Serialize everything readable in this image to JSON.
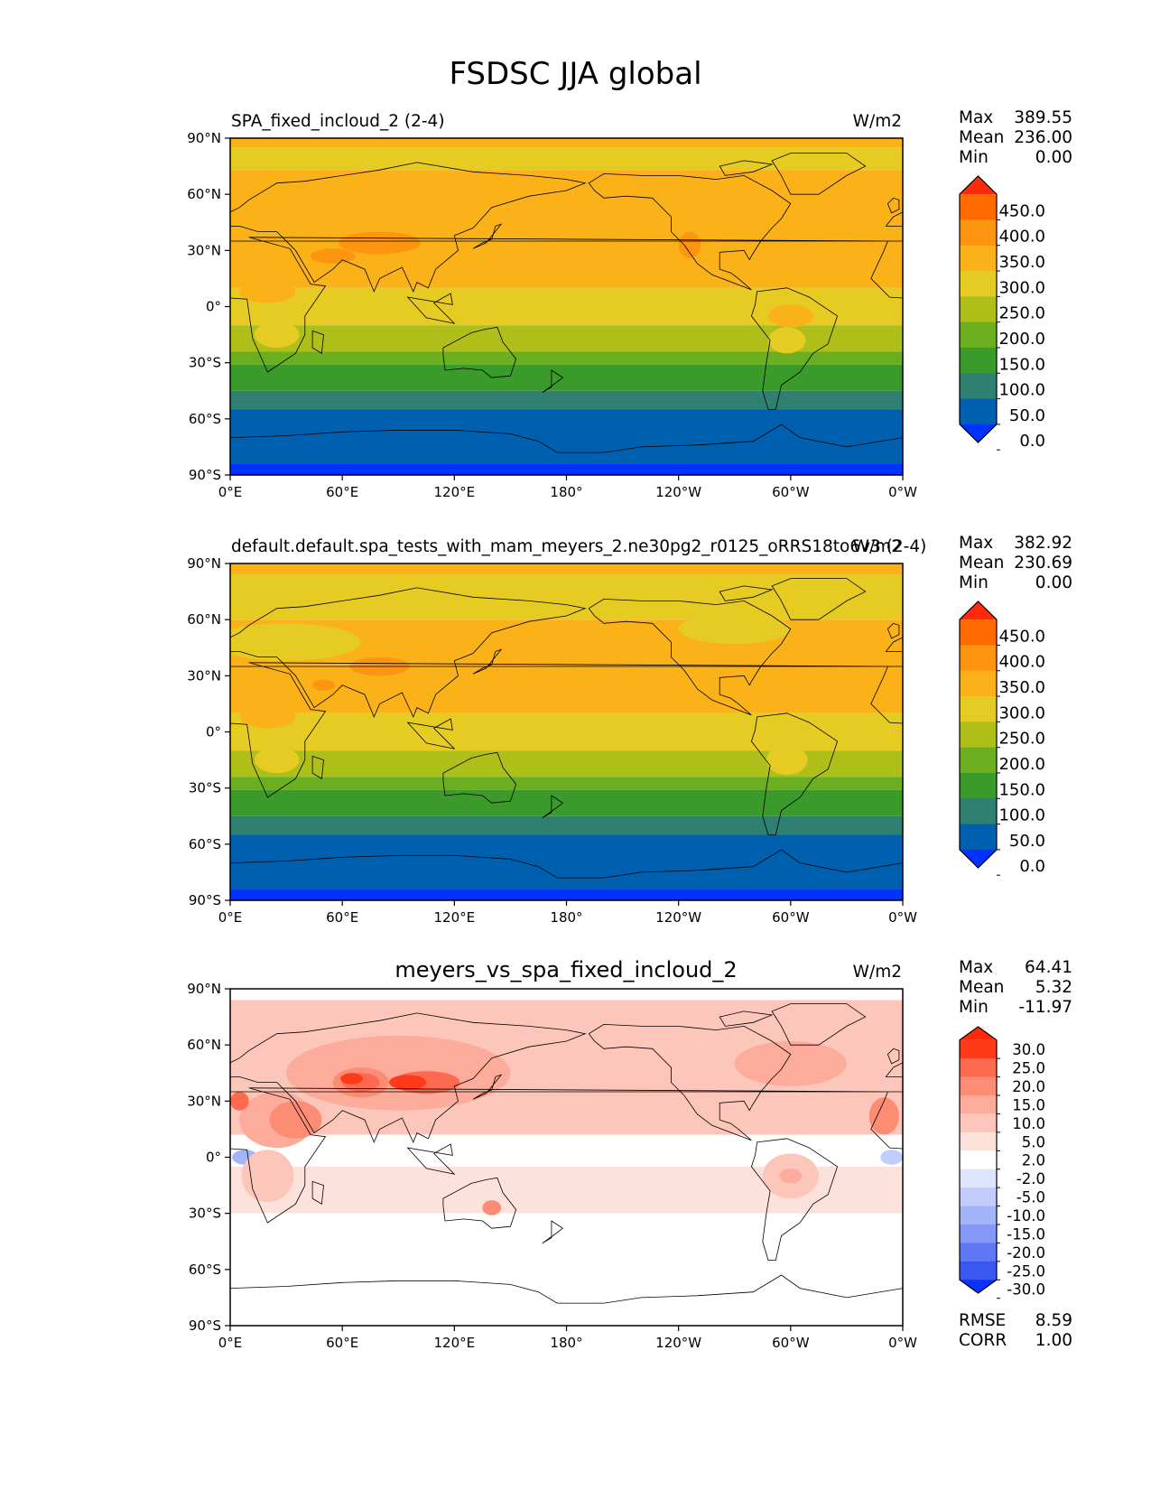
{
  "title": "FSDSC JJA global",
  "chart_data": [
    {
      "type": "heatmap",
      "title": "SPA_fixed_incloud_2 (2-4)",
      "units": "W/m2",
      "stats": [
        {
          "label": "Max",
          "value": "389.55"
        },
        {
          "label": "Mean",
          "value": "236.00"
        },
        {
          "label": "Min",
          "value": "0.00"
        }
      ],
      "xticks": [
        "0°E",
        "60°E",
        "120°E",
        "180°",
        "120°W",
        "60°W",
        "0°W"
      ],
      "yticks": [
        "90°N",
        "60°N",
        "30°N",
        "0°",
        "30°S",
        "60°S",
        "90°S"
      ],
      "xlim": [
        0,
        360
      ],
      "ylim": [
        -90,
        90
      ],
      "colorbar": {
        "labels": [
          "450.0",
          "400.0",
          "350.0",
          "300.0",
          "250.0",
          "200.0",
          "150.0",
          "100.0",
          "50.0",
          "0.0"
        ],
        "colors": [
          "#ff2a0a",
          "#ff6a00",
          "#fd9510",
          "#fbb219",
          "#e5cb22",
          "#afbf1a",
          "#6bae1f",
          "#3a9a2a",
          "#2f8070",
          "#0060b0",
          "#0032ff"
        ]
      },
      "bands": [
        {
          "from": 90,
          "to": 85,
          "color": "#fbb219"
        },
        {
          "from": 85,
          "to": 73,
          "color": "#e5cb22"
        },
        {
          "from": 73,
          "to": 10,
          "color": "#fbb219"
        },
        {
          "from": 10,
          "to": -10,
          "color": "#e5cb22"
        },
        {
          "from": -10,
          "to": -24,
          "color": "#afbf1a"
        },
        {
          "from": -24,
          "to": -31,
          "color": "#6bae1f"
        },
        {
          "from": -31,
          "to": -45,
          "color": "#3a9a2a"
        },
        {
          "from": -45,
          "to": -55,
          "color": "#2f8070"
        },
        {
          "from": -55,
          "to": -84,
          "color": "#0060b0"
        },
        {
          "from": -84,
          "to": -90,
          "color": "#0032ff"
        }
      ],
      "patches": [
        {
          "lon": 55,
          "lat": 27,
          "rlon": 12,
          "rlat": 4,
          "color": "#fd9510"
        },
        {
          "lon": 80,
          "lat": 34,
          "rlon": 22,
          "rlat": 6,
          "color": "#fd9510"
        },
        {
          "lon": 246,
          "lat": 33,
          "rlon": 6,
          "rlat": 7,
          "color": "#fd9510"
        },
        {
          "lon": 20,
          "lat": 8,
          "rlon": 15,
          "rlat": 6,
          "color": "#fbb219"
        },
        {
          "lon": 300,
          "lat": -5,
          "rlon": 12,
          "rlat": 6,
          "color": "#fbb219"
        },
        {
          "lon": 298,
          "lat": -18,
          "rlon": 10,
          "rlat": 7,
          "color": "#e5cb22"
        },
        {
          "lon": 25,
          "lat": -15,
          "rlon": 12,
          "rlat": 7,
          "color": "#e5cb22"
        }
      ]
    },
    {
      "type": "heatmap",
      "title": "default.default.spa_tests_with_mam_meyers_2.ne30pg2_r0125_oRRS18to6v3 (2-4)",
      "units": "W/m2",
      "stats": [
        {
          "label": "Max",
          "value": "382.92"
        },
        {
          "label": "Mean",
          "value": "230.69"
        },
        {
          "label": "Min",
          "value": "0.00"
        }
      ],
      "xticks": [
        "0°E",
        "60°E",
        "120°E",
        "180°",
        "120°W",
        "60°W",
        "0°W"
      ],
      "yticks": [
        "90°N",
        "60°N",
        "30°N",
        "0°",
        "30°S",
        "60°S",
        "90°S"
      ],
      "xlim": [
        0,
        360
      ],
      "ylim": [
        -90,
        90
      ],
      "colorbar": {
        "labels": [
          "450.0",
          "400.0",
          "350.0",
          "300.0",
          "250.0",
          "200.0",
          "150.0",
          "100.0",
          "50.0",
          "0.0"
        ],
        "colors": [
          "#ff2a0a",
          "#ff6a00",
          "#fd9510",
          "#fbb219",
          "#e5cb22",
          "#afbf1a",
          "#6bae1f",
          "#3a9a2a",
          "#2f8070",
          "#0060b0",
          "#0032ff"
        ]
      },
      "bands": [
        {
          "from": 90,
          "to": 84,
          "color": "#fbb219"
        },
        {
          "from": 84,
          "to": 60,
          "color": "#e5cb22"
        },
        {
          "from": 60,
          "to": 10,
          "color": "#fbb219"
        },
        {
          "from": 10,
          "to": -10,
          "color": "#e5cb22"
        },
        {
          "from": -10,
          "to": -24,
          "color": "#afbf1a"
        },
        {
          "from": -24,
          "to": -31,
          "color": "#6bae1f"
        },
        {
          "from": -31,
          "to": -45,
          "color": "#3a9a2a"
        },
        {
          "from": -45,
          "to": -55,
          "color": "#2f8070"
        },
        {
          "from": -55,
          "to": -84,
          "color": "#0060b0"
        },
        {
          "from": -84,
          "to": -90,
          "color": "#0032ff"
        }
      ],
      "patches": [
        {
          "lon": 30,
          "lat": 48,
          "rlon": 40,
          "rlat": 10,
          "color": "#e5cb22"
        },
        {
          "lon": 270,
          "lat": 55,
          "rlon": 30,
          "rlat": 8,
          "color": "#e5cb22"
        },
        {
          "lon": 80,
          "lat": 35,
          "rlon": 16,
          "rlat": 5,
          "color": "#fd9510"
        },
        {
          "lon": 50,
          "lat": 25,
          "rlon": 6,
          "rlat": 3,
          "color": "#fd9510"
        },
        {
          "lon": 20,
          "lat": 8,
          "rlon": 15,
          "rlat": 6,
          "color": "#fbb219"
        },
        {
          "lon": 298,
          "lat": -15,
          "rlon": 11,
          "rlat": 8,
          "color": "#e5cb22"
        },
        {
          "lon": 25,
          "lat": -15,
          "rlon": 12,
          "rlat": 7,
          "color": "#e5cb22"
        }
      ]
    },
    {
      "type": "heatmap",
      "title": "meyers_vs_spa_fixed_incloud_2",
      "units": "W/m2",
      "stats": [
        {
          "label": "Max",
          "value": "64.41"
        },
        {
          "label": "Mean",
          "value": "5.32"
        },
        {
          "label": "Min",
          "value": "-11.97"
        }
      ],
      "extra_stats": [
        {
          "label": "RMSE",
          "value": "8.59"
        },
        {
          "label": "CORR",
          "value": "1.00"
        }
      ],
      "xticks": [
        "0°E",
        "60°E",
        "120°E",
        "180°",
        "120°W",
        "60°W",
        "0°W"
      ],
      "yticks": [
        "90°N",
        "60°N",
        "30°N",
        "0°",
        "30°S",
        "60°S",
        "90°S"
      ],
      "xlim": [
        0,
        360
      ],
      "ylim": [
        -90,
        90
      ],
      "colorbar": {
        "labels": [
          "30.0",
          "25.0",
          "20.0",
          "15.0",
          "10.0",
          "5.0",
          "2.0",
          "-2.0",
          "-5.0",
          "-10.0",
          "-15.0",
          "-20.0",
          "-25.0",
          "-30.0"
        ],
        "colors": [
          "#ff2a0a",
          "#fe3a18",
          "#fd6a50",
          "#fd8c75",
          "#fdab9a",
          "#fdc6bb",
          "#fde2dc",
          "#ffffff",
          "#dfe4fd",
          "#c2cdfb",
          "#a4b4f9",
          "#8598f6",
          "#5f78f3",
          "#3a58f1",
          "#0a32ff"
        ]
      },
      "bands": [
        {
          "from": 90,
          "to": 84,
          "color": "#ffffff"
        },
        {
          "from": 84,
          "to": 12,
          "color": "#fdc6bb"
        },
        {
          "from": 12,
          "to": -5,
          "color": "#ffffff"
        },
        {
          "from": -5,
          "to": -30,
          "color": "#fde2dc"
        },
        {
          "from": -30,
          "to": -90,
          "color": "#ffffff"
        }
      ],
      "patches": [
        {
          "lon": 90,
          "lat": 45,
          "rlon": 60,
          "rlat": 20,
          "color": "#fdab9a"
        },
        {
          "lon": 300,
          "lat": 50,
          "rlon": 30,
          "rlat": 12,
          "color": "#fdab9a"
        },
        {
          "lon": 25,
          "lat": 20,
          "rlon": 20,
          "rlat": 15,
          "color": "#fdab9a"
        },
        {
          "lon": 35,
          "lat": 20,
          "rlon": 14,
          "rlat": 10,
          "color": "#fd8c75"
        },
        {
          "lon": 70,
          "lat": 40,
          "rlon": 15,
          "rlat": 8,
          "color": "#fd8c75"
        },
        {
          "lon": 105,
          "lat": 40,
          "rlon": 18,
          "rlat": 6,
          "color": "#fd6a50"
        },
        {
          "lon": 70,
          "lat": 40,
          "rlon": 10,
          "rlat": 5,
          "color": "#fd6a50"
        },
        {
          "lon": 95,
          "lat": 40,
          "rlon": 10,
          "rlat": 4,
          "color": "#fe3a18"
        },
        {
          "lon": 65,
          "lat": 42,
          "rlon": 6,
          "rlat": 3,
          "color": "#fe3a18"
        },
        {
          "lon": 350,
          "lat": 22,
          "rlon": 8,
          "rlat": 10,
          "color": "#fd8c75"
        },
        {
          "lon": 5,
          "lat": 30,
          "rlon": 5,
          "rlat": 5,
          "color": "#fd6a50"
        },
        {
          "lon": 8,
          "lat": 0,
          "rlon": 7,
          "rlat": 4,
          "color": "#a4b4f9"
        },
        {
          "lon": 354,
          "lat": 0,
          "rlon": 6,
          "rlat": 4,
          "color": "#c2cdfb"
        },
        {
          "lon": 300,
          "lat": -10,
          "rlon": 15,
          "rlat": 12,
          "color": "#fdc6bb"
        },
        {
          "lon": 300,
          "lat": -10,
          "rlon": 6,
          "rlat": 4,
          "color": "#fdab9a"
        },
        {
          "lon": 140,
          "lat": -27,
          "rlon": 5,
          "rlat": 4,
          "color": "#fd8c75"
        },
        {
          "lon": 20,
          "lat": -10,
          "rlon": 14,
          "rlat": 14,
          "color": "#fdc6bb"
        }
      ]
    }
  ]
}
